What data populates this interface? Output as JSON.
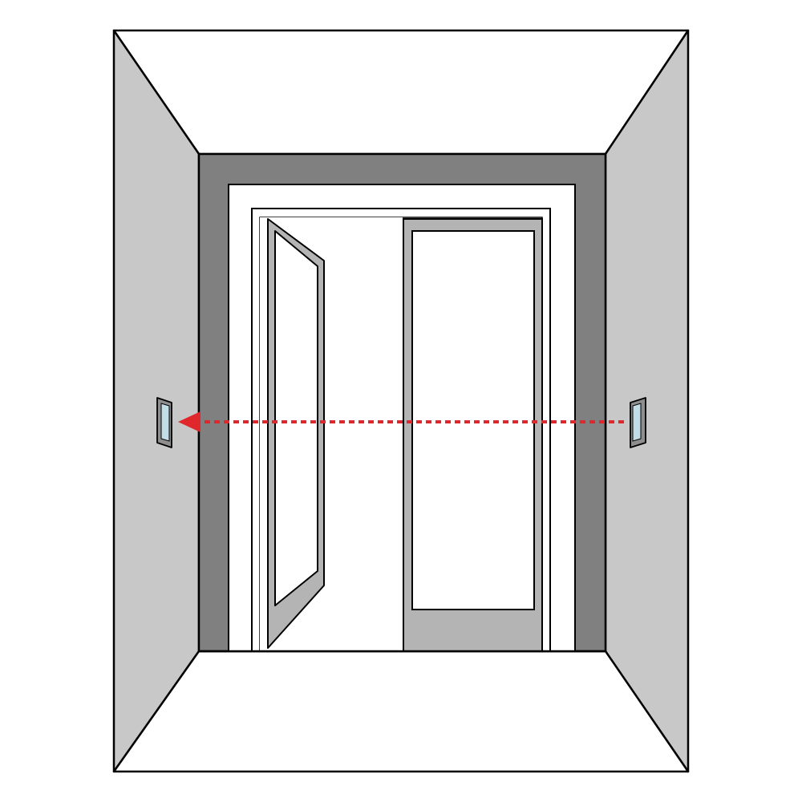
{
  "diagram": {
    "title": "",
    "labels": []
  },
  "colors": {
    "background": "#ffffff",
    "ceiling": "#ffffff",
    "floor": "#ffffff",
    "side_wall": "#c8c8c8",
    "back_wall": "#808080",
    "door_trim": "#ffffff",
    "door_leaf": "#b4b4b4",
    "glass": "#ffffff",
    "outline": "#000000",
    "beam": "#e0282c",
    "sensor_face": "#c2dde6"
  },
  "elements": {
    "beam_style": "dashed",
    "beam_direction": "right-to-left",
    "sensors": [
      "transmitter",
      "receiver"
    ],
    "door_type": "double door, left leaf open"
  }
}
